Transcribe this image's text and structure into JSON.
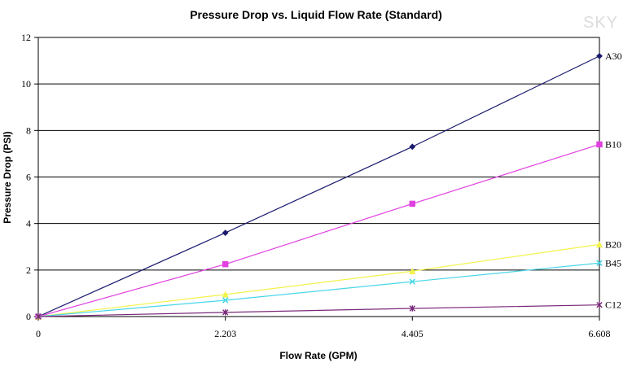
{
  "watermark": "SKY",
  "chart_data": {
    "type": "line",
    "title": "Pressure Drop vs. Liquid Flow Rate (Standard)",
    "xlabel": "Flow Rate (GPM)",
    "ylabel": "Pressure Drop (PSI)",
    "x": [
      0,
      2.203,
      4.405,
      6.608
    ],
    "x_tick_labels": [
      "0",
      "2.203",
      "4.405",
      "6.608"
    ],
    "xlim": [
      0,
      6.608
    ],
    "ylim": [
      0,
      12
    ],
    "y_ticks": [
      0,
      2,
      4,
      6,
      8,
      10,
      12
    ],
    "y_tick_labels": [
      "0",
      "2",
      "4",
      "6",
      "8",
      "10",
      "12"
    ],
    "grid": "horizontal",
    "legend": "series labels at right end of lines",
    "series": [
      {
        "name": "A30",
        "values": [
          0,
          3.6,
          7.3,
          11.2
        ],
        "color": "#1a1a6e",
        "marker": "diamond"
      },
      {
        "name": "B10",
        "values": [
          0,
          2.25,
          4.85,
          7.4
        ],
        "color": "#e040e0",
        "marker": "square"
      },
      {
        "name": "B20",
        "values": [
          0,
          0.95,
          1.95,
          3.1
        ],
        "color": "#f2f24a",
        "marker": "triangle"
      },
      {
        "name": "B45",
        "values": [
          0,
          0.7,
          1.5,
          2.3
        ],
        "color": "#49d6e8",
        "marker": "x"
      },
      {
        "name": "C12",
        "values": [
          0,
          0.18,
          0.35,
          0.5
        ],
        "color": "#7a2a7a",
        "marker": "star"
      }
    ]
  }
}
